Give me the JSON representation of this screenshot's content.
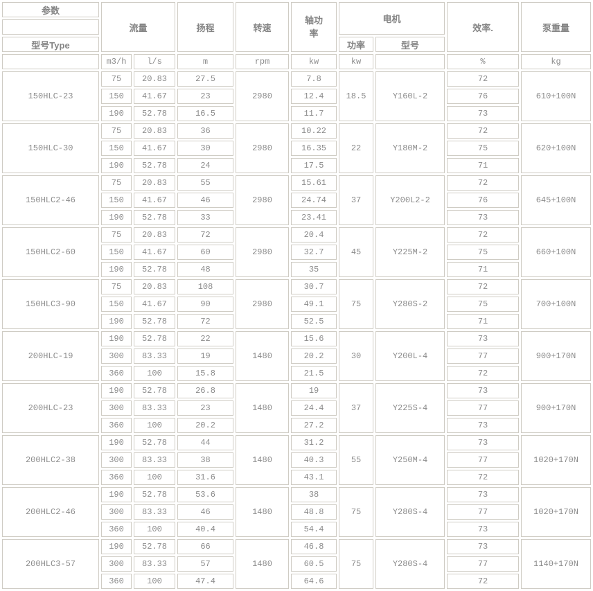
{
  "table": {
    "header": {
      "param_label": "参数",
      "type_label": "型号Type",
      "flow_label": "流量",
      "head_label": "扬程",
      "speed_label": "转速",
      "shaft_power_label": "轴功率",
      "motor_label": "电机",
      "motor_power_label": "功率",
      "motor_model_label": "型号",
      "efficiency_label": "效率.",
      "pump_weight_label": "泵重量",
      "units": {
        "flow_m3h": "m3/h",
        "flow_ls": "l/s",
        "head_m": "m",
        "speed_rpm": "rpm",
        "shaft_kw": "kw",
        "motor_kw": "kw",
        "efficiency_pct": "%",
        "weight_kg": "kg"
      }
    },
    "rows": [
      {
        "model": "150HLC-23",
        "speed": "2980",
        "motor_power": "18.5",
        "motor_model": "Y160L-2",
        "weight": "610+100N",
        "points": [
          {
            "m3h": "75",
            "ls": "20.83",
            "head": "27.5",
            "shaft": "7.8",
            "eff": "72"
          },
          {
            "m3h": "150",
            "ls": "41.67",
            "head": "23",
            "shaft": "12.4",
            "eff": "76"
          },
          {
            "m3h": "190",
            "ls": "52.78",
            "head": "16.5",
            "shaft": "11.7",
            "eff": "73"
          }
        ]
      },
      {
        "model": "150HLC-30",
        "speed": "2980",
        "motor_power": "22",
        "motor_model": "Y180M-2",
        "weight": "620+100N",
        "points": [
          {
            "m3h": "75",
            "ls": "20.83",
            "head": "36",
            "shaft": "10.22",
            "eff": "72"
          },
          {
            "m3h": "150",
            "ls": "41.67",
            "head": "30",
            "shaft": "16.35",
            "eff": "75"
          },
          {
            "m3h": "190",
            "ls": "52.78",
            "head": "24",
            "shaft": "17.5",
            "eff": "71"
          }
        ]
      },
      {
        "model": "150HLC2-46",
        "speed": "2980",
        "motor_power": "37",
        "motor_model": "Y200L2-2",
        "weight": "645+100N",
        "points": [
          {
            "m3h": "75",
            "ls": "20.83",
            "head": "55",
            "shaft": "15.61",
            "eff": "72"
          },
          {
            "m3h": "150",
            "ls": "41.67",
            "head": "46",
            "shaft": "24.74",
            "eff": "76"
          },
          {
            "m3h": "190",
            "ls": "52.78",
            "head": "33",
            "shaft": "23.41",
            "eff": "73"
          }
        ]
      },
      {
        "model": "150HLC2-60",
        "speed": "2980",
        "motor_power": "45",
        "motor_model": "Y225M-2",
        "weight": "660+100N",
        "points": [
          {
            "m3h": "75",
            "ls": "20.83",
            "head": "72",
            "shaft": "20.4",
            "eff": "72"
          },
          {
            "m3h": "150",
            "ls": "41.67",
            "head": "60",
            "shaft": "32.7",
            "eff": "75"
          },
          {
            "m3h": "190",
            "ls": "52.78",
            "head": "48",
            "shaft": "35",
            "eff": "71"
          }
        ]
      },
      {
        "model": "150HLC3-90",
        "speed": "2980",
        "motor_power": "75",
        "motor_model": "Y280S-2",
        "weight": "700+100N",
        "points": [
          {
            "m3h": "75",
            "ls": "20.83",
            "head": "108",
            "shaft": "30.7",
            "eff": "72"
          },
          {
            "m3h": "150",
            "ls": "41.67",
            "head": "90",
            "shaft": "49.1",
            "eff": "75"
          },
          {
            "m3h": "190",
            "ls": "52.78",
            "head": "72",
            "shaft": "52.5",
            "eff": "71"
          }
        ]
      },
      {
        "model": "200HLC-19",
        "speed": "1480",
        "motor_power": "30",
        "motor_model": "Y200L-4",
        "weight": "900+170N",
        "points": [
          {
            "m3h": "190",
            "ls": "52.78",
            "head": "22",
            "shaft": "15.6",
            "eff": "73"
          },
          {
            "m3h": "300",
            "ls": "83.33",
            "head": "19",
            "shaft": "20.2",
            "eff": "77"
          },
          {
            "m3h": "360",
            "ls": "100",
            "head": "15.8",
            "shaft": "21.5",
            "eff": "72"
          }
        ]
      },
      {
        "model": "200HLC-23",
        "speed": "1480",
        "motor_power": "37",
        "motor_model": "Y225S-4",
        "weight": "900+170N",
        "points": [
          {
            "m3h": "190",
            "ls": "52.78",
            "head": "26.8",
            "shaft": "19",
            "eff": "73"
          },
          {
            "m3h": "300",
            "ls": "83.33",
            "head": "23",
            "shaft": "24.4",
            "eff": "77"
          },
          {
            "m3h": "360",
            "ls": "100",
            "head": "20.2",
            "shaft": "27.2",
            "eff": "73"
          }
        ]
      },
      {
        "model": "200HLC2-38",
        "speed": "1480",
        "motor_power": "55",
        "motor_model": "Y250M-4",
        "weight": "1020+170N",
        "points": [
          {
            "m3h": "190",
            "ls": "52.78",
            "head": "44",
            "shaft": "31.2",
            "eff": "73"
          },
          {
            "m3h": "300",
            "ls": "83.33",
            "head": "38",
            "shaft": "40.3",
            "eff": "77"
          },
          {
            "m3h": "360",
            "ls": "100",
            "head": "31.6",
            "shaft": "43.1",
            "eff": "72"
          }
        ]
      },
      {
        "model": "200HLC2-46",
        "speed": "1480",
        "motor_power": "75",
        "motor_model": "Y280S-4",
        "weight": "1020+170N",
        "points": [
          {
            "m3h": "190",
            "ls": "52.78",
            "head": "53.6",
            "shaft": "38",
            "eff": "73"
          },
          {
            "m3h": "300",
            "ls": "83.33",
            "head": "46",
            "shaft": "48.8",
            "eff": "77"
          },
          {
            "m3h": "360",
            "ls": "100",
            "head": "40.4",
            "shaft": "54.4",
            "eff": "73"
          }
        ]
      },
      {
        "model": "200HLC3-57",
        "speed": "1480",
        "motor_power": "75",
        "motor_model": "Y280S-4",
        "weight": "1140+170N",
        "points": [
          {
            "m3h": "190",
            "ls": "52.78",
            "head": "66",
            "shaft": "46.8",
            "eff": "73"
          },
          {
            "m3h": "300",
            "ls": "83.33",
            "head": "57",
            "shaft": "60.5",
            "eff": "77"
          },
          {
            "m3h": "360",
            "ls": "100",
            "head": "47.4",
            "shaft": "64.6",
            "eff": "72"
          }
        ]
      }
    ]
  }
}
